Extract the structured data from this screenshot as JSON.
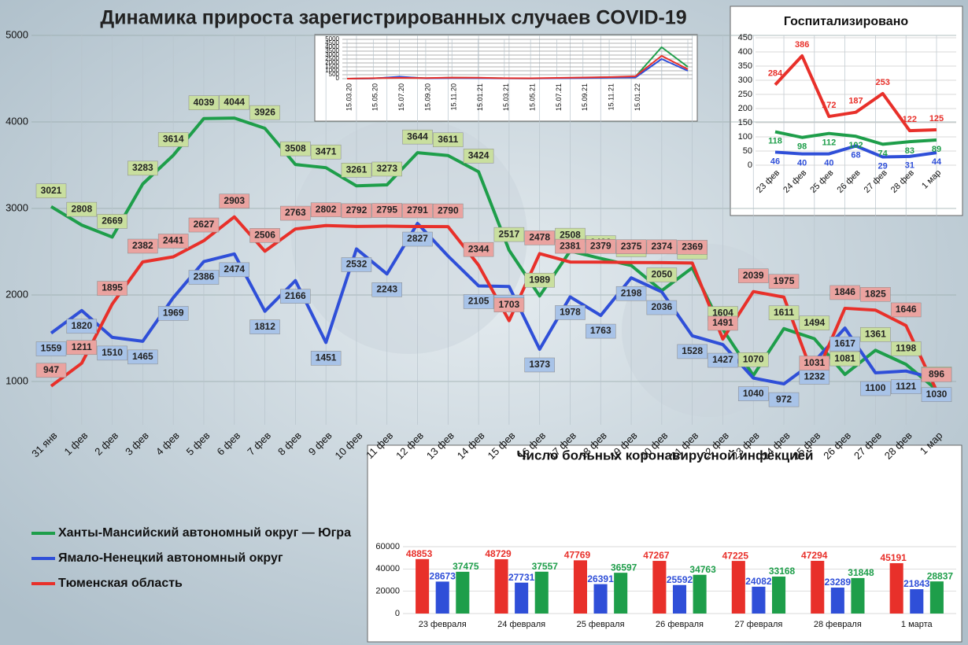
{
  "chart_data": [
    {
      "type": "line",
      "title": "Динамика прироста зарегистрированных случаев COVID-19",
      "categories": [
        "31 янв",
        "1 фев",
        "2 фев",
        "3 фев",
        "4 фев",
        "5 фев",
        "6 фев",
        "7 фев",
        "8 фев",
        "9 фев",
        "10 фев",
        "11 фев",
        "12 фев",
        "13 фев",
        "14 фев",
        "15 фев",
        "16 фев",
        "17 фев",
        "18 фев",
        "19 фев",
        "20 фев",
        "21 фев",
        "22 фев",
        "23 фев",
        "24 фев",
        "25 фев",
        "26 фев",
        "27 фев",
        "28 фев",
        "1 мар"
      ],
      "series": [
        {
          "name": "Ханты-Мансийский автономный округ — Югра",
          "color": "#1e9e4a",
          "label_color": "#c9df9f",
          "values": [
            3021,
            2808,
            2669,
            3283,
            3614,
            4039,
            4044,
            3926,
            3508,
            3471,
            3261,
            3273,
            3644,
            3611,
            3424,
            2517,
            1989,
            2508,
            2422,
            2341,
            2050,
            2314,
            1604,
            1070,
            1611,
            1494,
            1081,
            1361,
            1198,
            906
          ]
        },
        {
          "name": "Ямало-Ненецкий автономный округ",
          "color": "#2f4fd8",
          "label_color": "#a8c3e8",
          "values": [
            1559,
            1820,
            1510,
            1465,
            1969,
            2386,
            2474,
            1812,
            2166,
            1451,
            2532,
            2243,
            2827,
            2450,
            2105,
            2098,
            1373,
            1978,
            1763,
            2198,
            2036,
            1528,
            1427,
            1040,
            972,
            1232,
            1617,
            1100,
            1121,
            1030
          ],
          "value_labels": [
            "1559",
            "1820",
            "1510",
            "1465",
            "1969",
            "2386",
            "2474",
            "1812",
            "2166",
            "1451",
            "2532",
            "2243",
            "2827",
            null,
            "2105",
            "2098",
            "1373",
            "1978",
            "1763",
            "2198",
            "2036",
            "1528",
            "1427",
            "1040",
            "972",
            "1232",
            "1617",
            "1100",
            "1121",
            "1030"
          ]
        },
        {
          "name": "Тюменская область",
          "color": "#e8302a",
          "label_color": "#eaa3a0",
          "values": [
            947,
            1211,
            1895,
            2382,
            2441,
            2627,
            2903,
            2506,
            2763,
            2802,
            2792,
            2795,
            2791,
            2790,
            2344,
            1703,
            2478,
            2381,
            2379,
            2375,
            2374,
            2369,
            1491,
            2039,
            1975,
            1031,
            1846,
            1825,
            1646,
            896
          ]
        }
      ],
      "ylim": [
        500,
        5000
      ],
      "yticks": [
        1000,
        2000,
        3000,
        4000,
        5000
      ],
      "grid": true
    },
    {
      "type": "line",
      "categories": [
        "15.03.20",
        "15.05.20",
        "15.07.20",
        "15.09.20",
        "15.11.20",
        "15.01.21",
        "15.03.21",
        "15.05.21",
        "15.07.21",
        "15.09.21",
        "15.11.21",
        "15.01.22",
        null,
        null
      ],
      "series": [
        {
          "color": "#1e9e4a",
          "values": [
            0,
            40,
            200,
            60,
            120,
            100,
            50,
            40,
            60,
            120,
            180,
            250,
            4000,
            1500
          ]
        },
        {
          "color": "#2f4fd8",
          "values": [
            0,
            30,
            250,
            40,
            80,
            60,
            40,
            30,
            50,
            80,
            120,
            150,
            2500,
            1000
          ]
        },
        {
          "color": "#e8302a",
          "values": [
            0,
            60,
            100,
            80,
            140,
            120,
            60,
            50,
            100,
            150,
            200,
            300,
            2900,
            1200
          ]
        }
      ],
      "ylim": [
        0,
        5000
      ],
      "yticks": [
        0,
        500,
        1000,
        1500,
        2000,
        2500,
        3000,
        3500,
        4000,
        4500,
        5000
      ],
      "grid": true
    },
    {
      "type": "line",
      "title": "Госпитализировано",
      "categories": [
        "23 фев",
        "24 фев",
        "25 фев",
        "26 фев",
        "27 фев",
        "28 фев",
        "1 мар"
      ],
      "series": [
        {
          "color": "#e8302a",
          "values": [
            284,
            386,
            172,
            187,
            253,
            122,
            125
          ]
        },
        {
          "color": "#1e9e4a",
          "values": [
            118,
            98,
            112,
            102,
            74,
            83,
            89
          ]
        },
        {
          "color": "#2f4fd8",
          "values": [
            46,
            40,
            40,
            68,
            29,
            31,
            44
          ]
        }
      ],
      "ylim": [
        0,
        450
      ],
      "yticks": [
        0,
        50,
        100,
        150,
        200,
        250,
        300,
        350,
        400,
        450
      ],
      "grid": true
    },
    {
      "type": "bar",
      "title": "Число больных коронавирусной инфекцией",
      "categories": [
        "23 февраля",
        "24 февраля",
        "25 февраля",
        "26 февраля",
        "27 февраля",
        "28 февраля",
        "1 марта"
      ],
      "series": [
        {
          "color": "#e8302a",
          "values": [
            48853,
            48729,
            47769,
            47267,
            47225,
            47294,
            45191
          ]
        },
        {
          "color": "#2f4fd8",
          "values": [
            28673,
            27731,
            26391,
            25592,
            24082,
            23289,
            21843
          ]
        },
        {
          "color": "#1e9e4a",
          "values": [
            37475,
            37557,
            36597,
            34763,
            33168,
            31848,
            28837
          ]
        }
      ],
      "ylim": [
        0,
        60000
      ],
      "yticks": [
        0,
        20000,
        40000,
        60000
      ],
      "grid": true
    }
  ]
}
